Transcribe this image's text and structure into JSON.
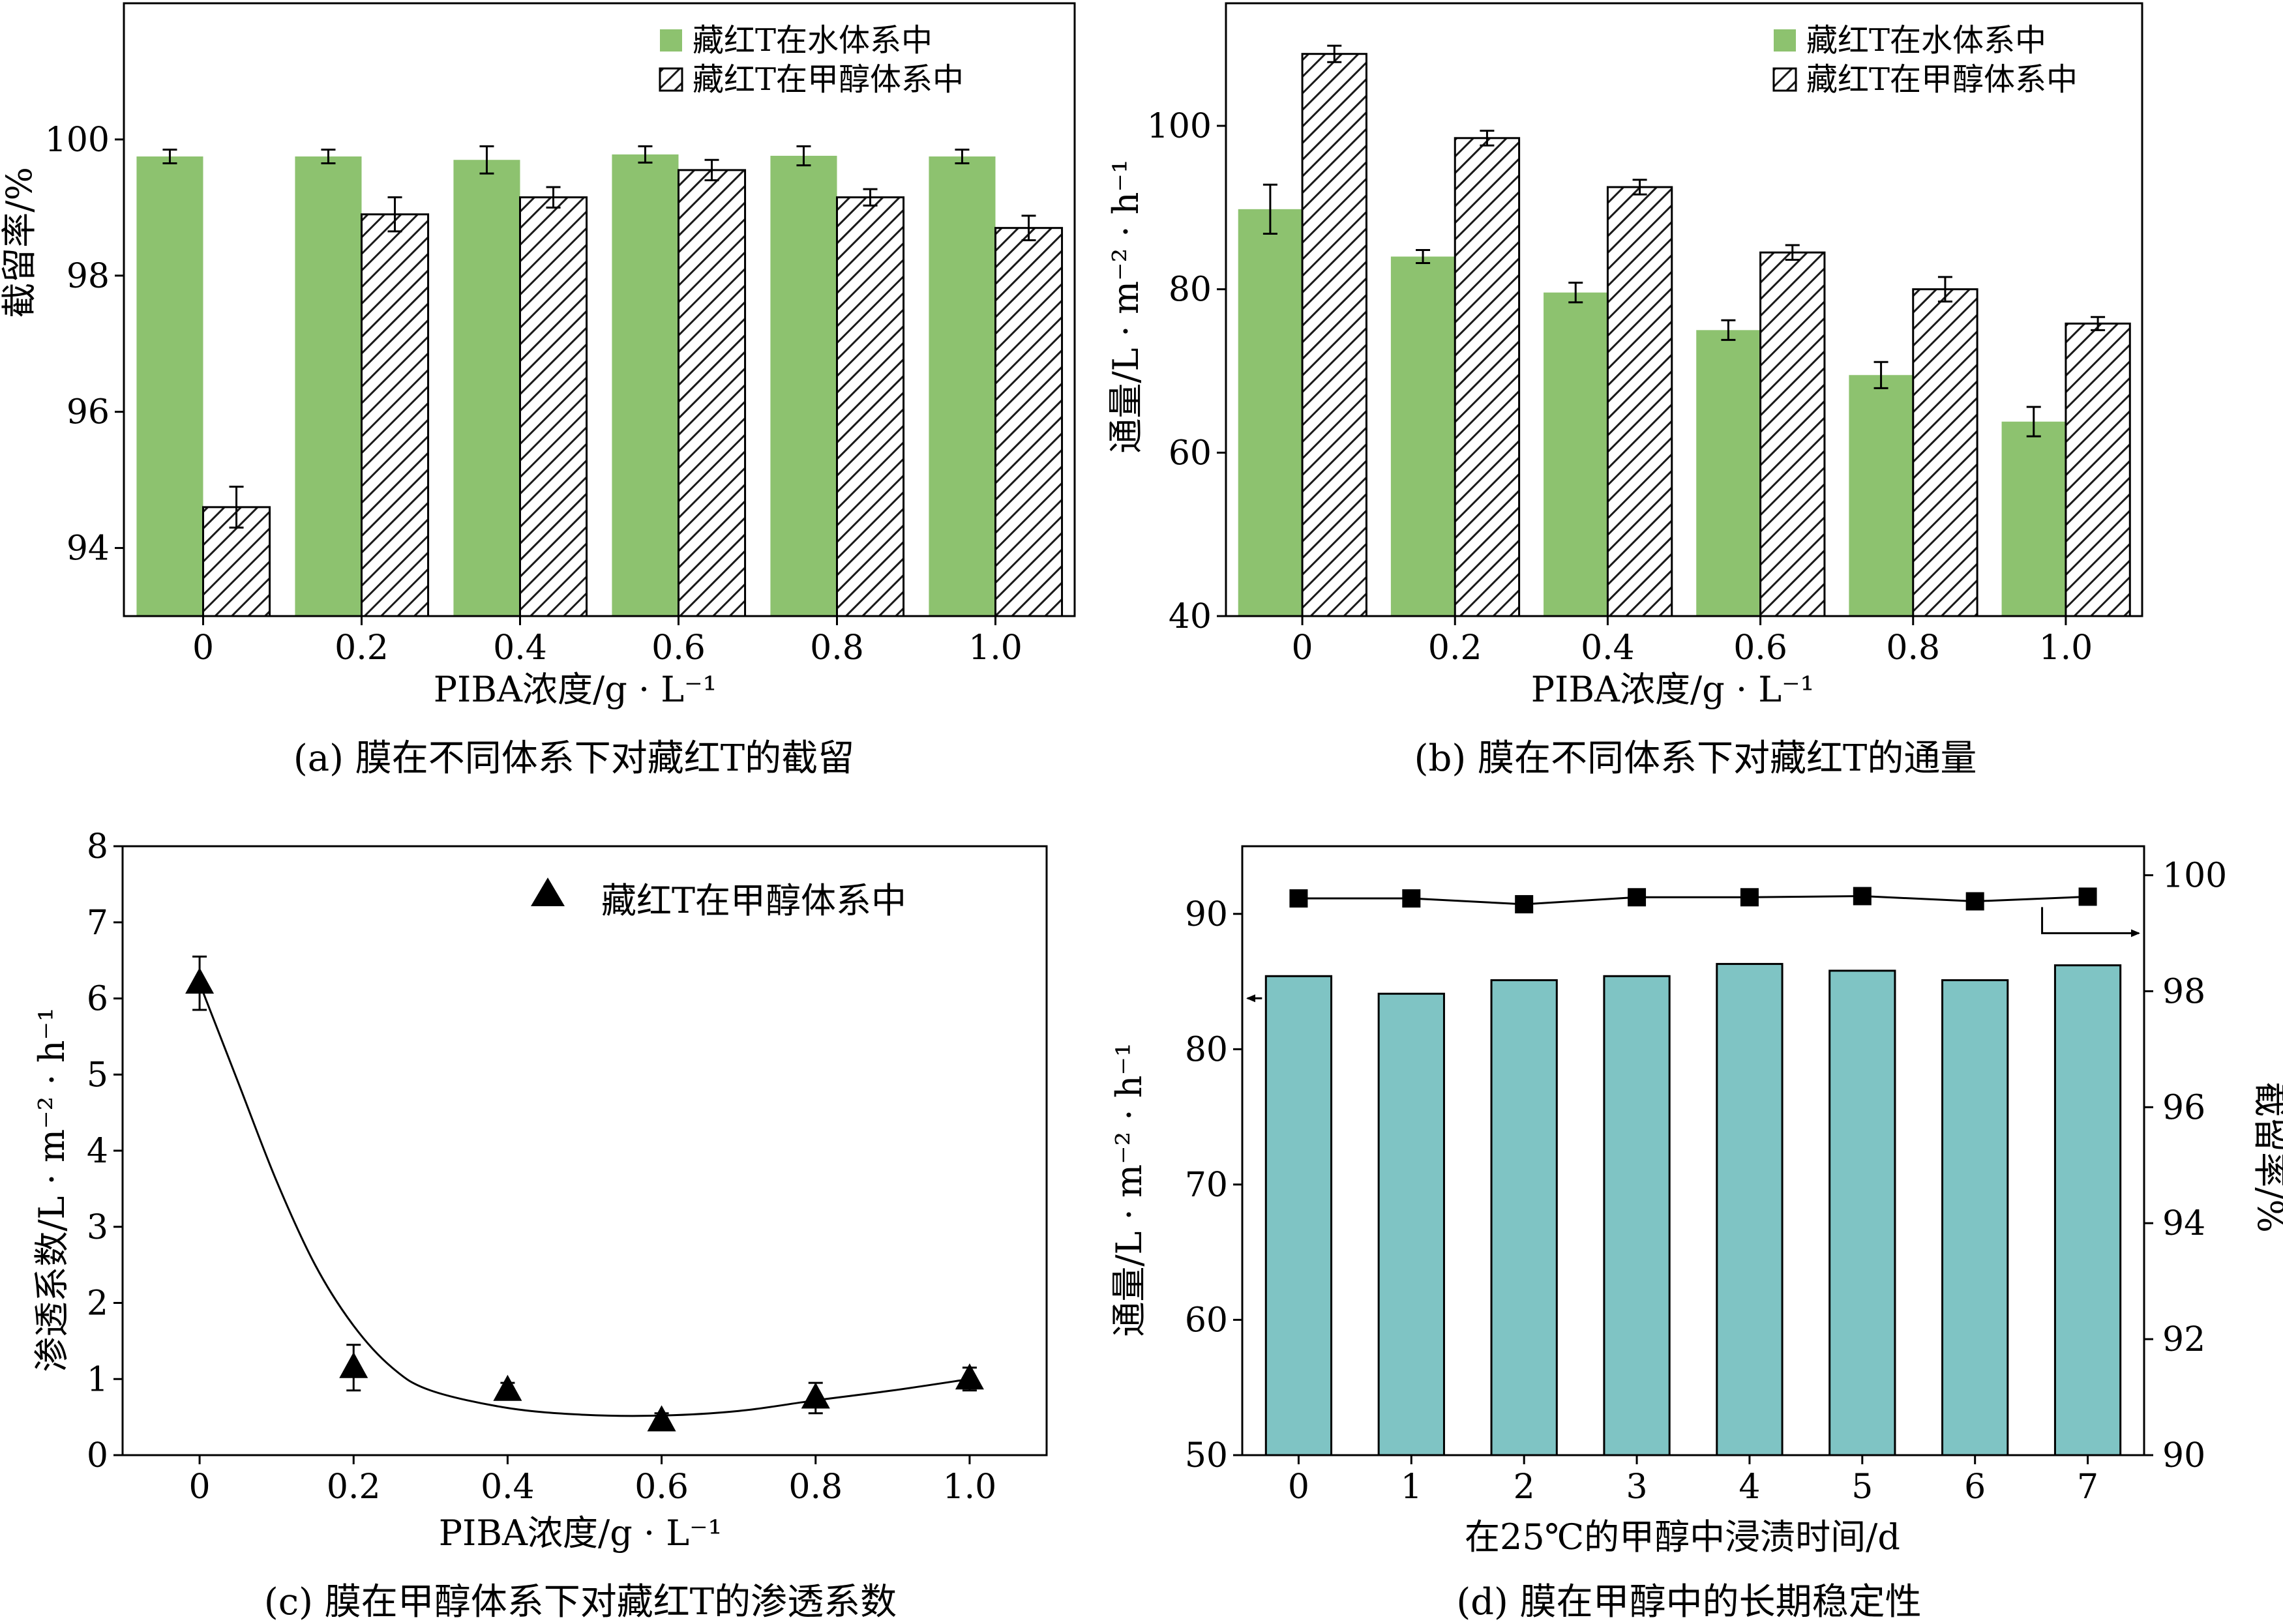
{
  "colors": {
    "water_bar": "#8dc26f",
    "methanol_hatch": "#1a1a1a",
    "teal_bar": "#7fc4c4",
    "axis": "#000000"
  },
  "chart_data": [
    {
      "id": "a",
      "type": "bar",
      "caption": "(a) 膜在不同体系下对藏红T的截留",
      "xlabel": "PIBA浓度/g · L⁻¹",
      "ylabel": "截留率/%",
      "categories": [
        "0",
        "0.2",
        "0.4",
        "0.6",
        "0.8",
        "1.0"
      ],
      "ylim": [
        93,
        102
      ],
      "yticks": [
        "94",
        "96",
        "98",
        "100"
      ],
      "series": [
        {
          "name": "藏红T在水体系中",
          "values": [
            99.75,
            99.75,
            99.7,
            99.78,
            99.76,
            99.75
          ],
          "errors": [
            0.1,
            0.1,
            0.2,
            0.12,
            0.14,
            0.1
          ]
        },
        {
          "name": "藏红T在甲醇体系中",
          "values": [
            94.6,
            98.9,
            99.15,
            99.55,
            99.15,
            98.7
          ],
          "errors": [
            0.3,
            0.25,
            0.15,
            0.15,
            0.12,
            0.18
          ]
        }
      ],
      "legend": "top-right"
    },
    {
      "id": "b",
      "type": "bar",
      "caption": "(b) 膜在不同体系下对藏红T的通量",
      "xlabel": "PIBA浓度/g · L⁻¹",
      "ylabel": "通量/L · m⁻² · h⁻¹",
      "categories": [
        "0",
        "0.2",
        "0.4",
        "0.6",
        "0.8",
        "1.0"
      ],
      "ylim": [
        40,
        115
      ],
      "yticks": [
        "40",
        "60",
        "80",
        "100"
      ],
      "series": [
        {
          "name": "藏红T在水体系中",
          "values": [
            89.8,
            84.0,
            79.6,
            75.0,
            69.5,
            63.8
          ],
          "errors": [
            3.0,
            0.8,
            1.2,
            1.2,
            1.6,
            1.8
          ]
        },
        {
          "name": "藏红T在甲醇体系中",
          "values": [
            108.8,
            98.5,
            92.5,
            84.5,
            80.0,
            75.8
          ],
          "errors": [
            1.0,
            0.9,
            0.9,
            0.9,
            1.5,
            0.8
          ]
        }
      ],
      "legend": "top-right"
    },
    {
      "id": "c",
      "type": "scatter",
      "caption": "(c) 膜在甲醇体系下对藏红T的渗透系数",
      "xlabel": "PIBA浓度/g · L⁻¹",
      "ylabel": "渗透系数/L · m⁻² · h⁻¹",
      "x": [
        0,
        0.2,
        0.4,
        0.6,
        0.8,
        1.0
      ],
      "xticks": [
        "0",
        "0.2",
        "0.4",
        "0.6",
        "0.8",
        "1.0"
      ],
      "xlim": [
        -0.1,
        1.1
      ],
      "ylim": [
        0,
        8
      ],
      "yticks": [
        "0",
        "1",
        "2",
        "3",
        "4",
        "5",
        "6",
        "7",
        "8"
      ],
      "series": [
        {
          "name": "藏红T在甲醇体系中",
          "values": [
            6.2,
            1.15,
            0.85,
            0.45,
            0.75,
            1.0
          ],
          "errors": [
            0.35,
            0.3,
            0.1,
            0.1,
            0.2,
            0.15
          ]
        }
      ],
      "fit_curve": [
        [
          0,
          6.2
        ],
        [
          0.05,
          4.9
        ],
        [
          0.1,
          3.6
        ],
        [
          0.15,
          2.5
        ],
        [
          0.2,
          1.7
        ],
        [
          0.25,
          1.15
        ],
        [
          0.3,
          0.85
        ],
        [
          0.4,
          0.62
        ],
        [
          0.5,
          0.53
        ],
        [
          0.6,
          0.52
        ],
        [
          0.7,
          0.58
        ],
        [
          0.8,
          0.72
        ],
        [
          0.9,
          0.85
        ],
        [
          1.0,
          1.0
        ]
      ],
      "legend": "top-right"
    },
    {
      "id": "d",
      "type": "bar",
      "caption": "(d) 膜在甲醇中的长期稳定性",
      "xlabel": "在25℃的甲醇中浸渍时间/d",
      "ylabel": "通量/L · m⁻² · h⁻¹",
      "ylabel_right": "截留率/%",
      "categories": [
        "0",
        "1",
        "2",
        "3",
        "4",
        "5",
        "6",
        "7"
      ],
      "ylim": [
        50,
        95
      ],
      "yticks": [
        "50",
        "60",
        "70",
        "80",
        "90"
      ],
      "ylim_right": [
        90,
        100.5
      ],
      "yticks_right": [
        "90",
        "92",
        "94",
        "96",
        "98",
        "100"
      ],
      "series": [
        {
          "name": "通量",
          "axis": "left",
          "values": [
            85.4,
            84.1,
            85.1,
            85.4,
            86.3,
            85.8,
            85.1,
            86.2
          ]
        },
        {
          "name": "截留率",
          "axis": "right",
          "values": [
            99.6,
            99.6,
            99.5,
            99.62,
            99.62,
            99.64,
            99.55,
            99.63
          ]
        }
      ]
    }
  ]
}
